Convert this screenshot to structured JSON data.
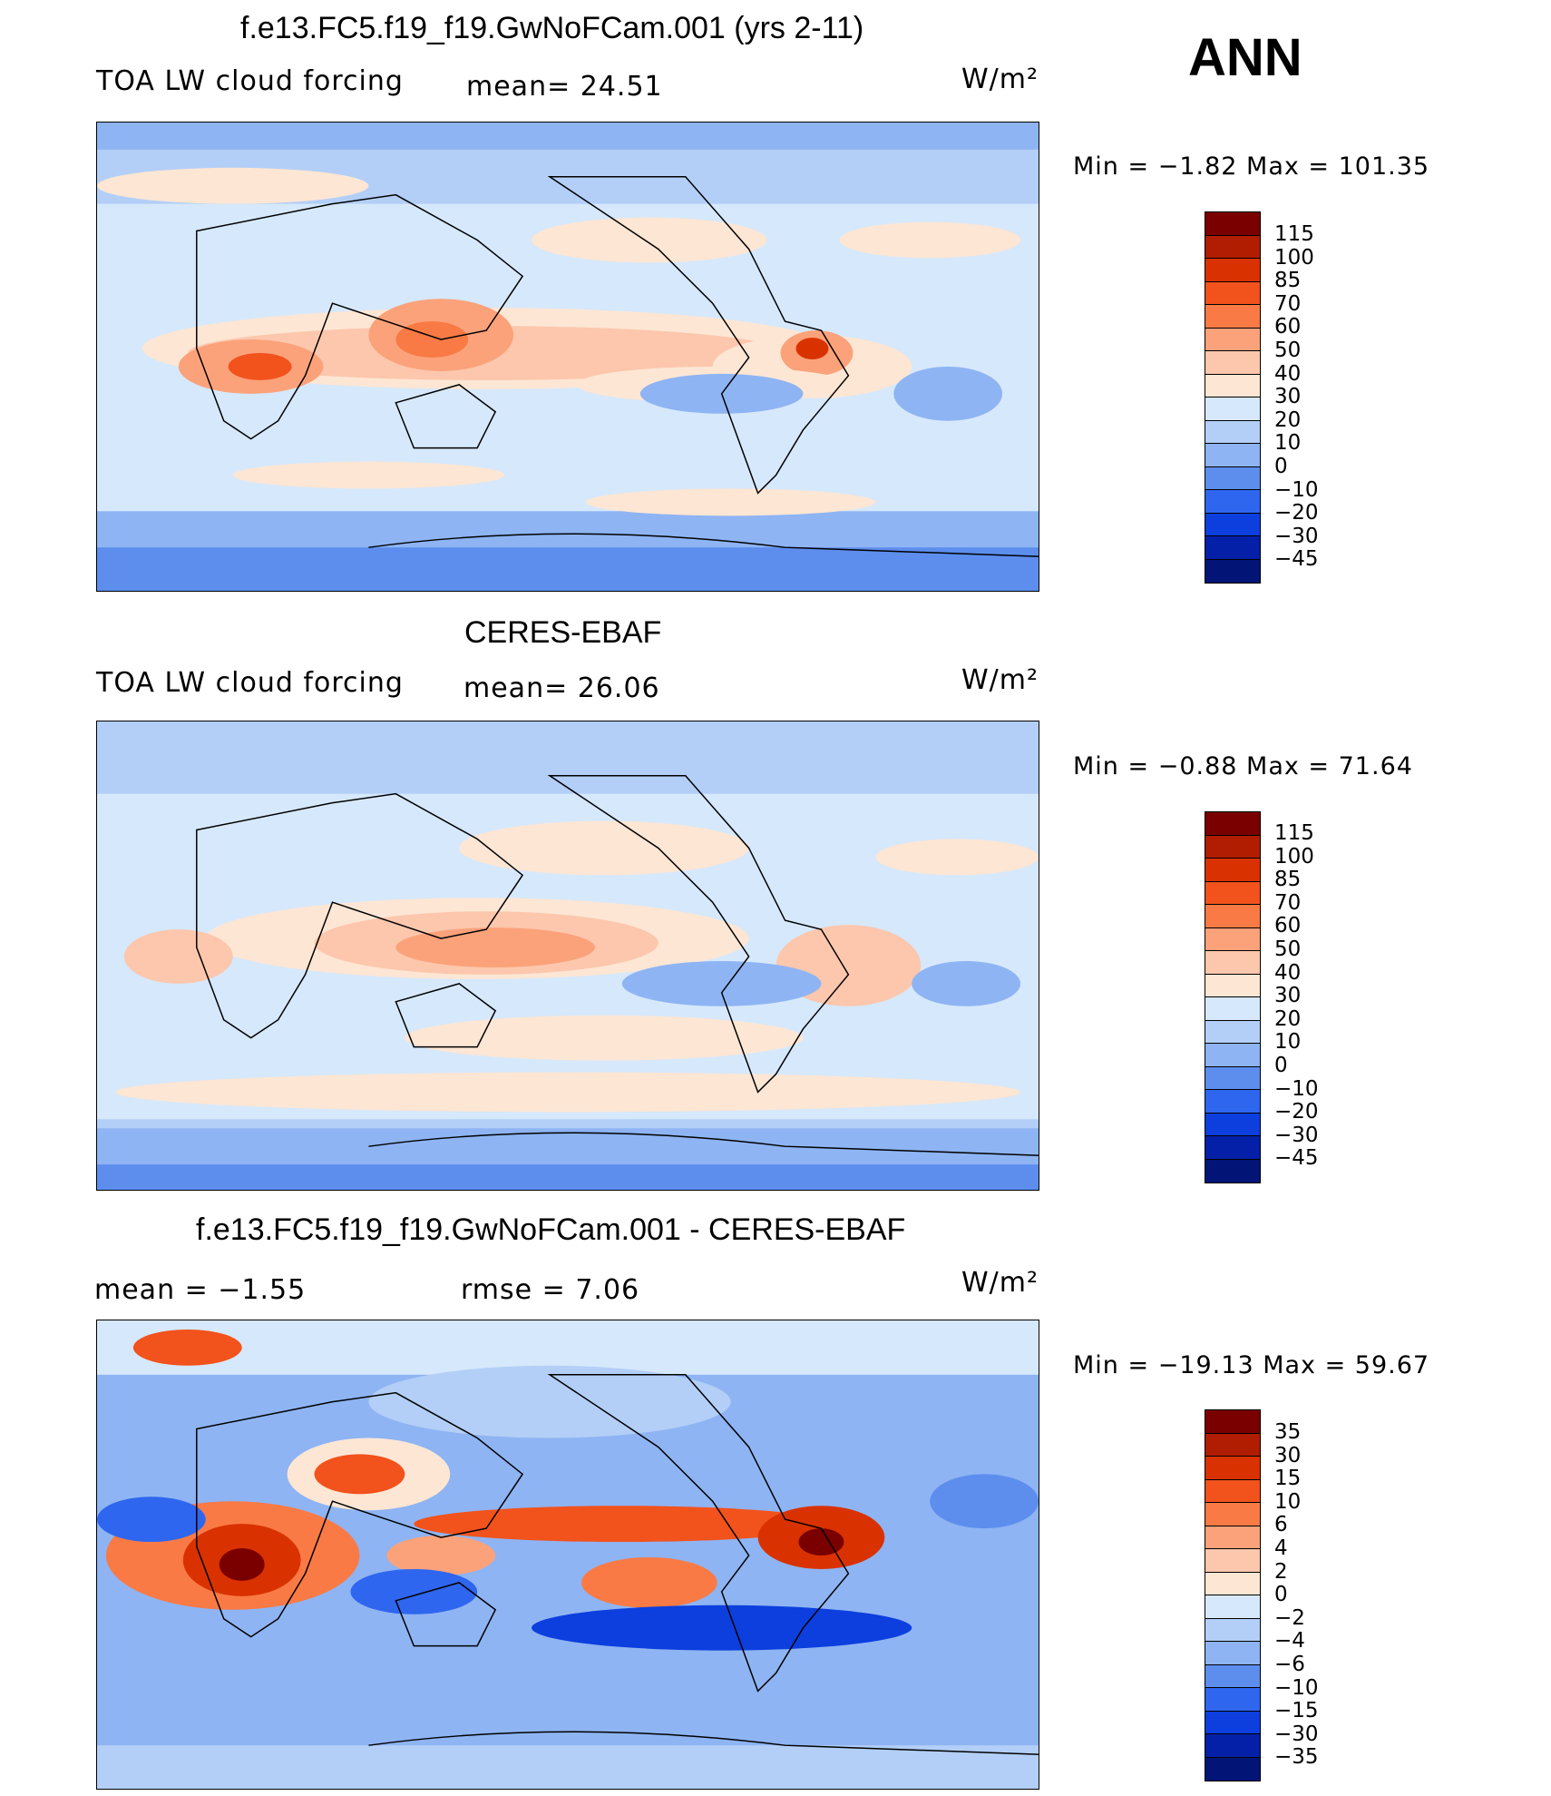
{
  "season": "ANN",
  "units": "W/m²",
  "panels": [
    {
      "title": "f.e13.FC5.f19_f19.GwNoFCam.001 (yrs 2-11)",
      "variable": "TOA LW cloud forcing",
      "stat1": "mean=   24.51",
      "stat2": "",
      "minmax": "Min =   −1.82  Max  =  101.35",
      "levels": [
        "115",
        "100",
        "85",
        "70",
        "60",
        "50",
        "40",
        "30",
        "20",
        "10",
        "0",
        "−10",
        "−20",
        "−30",
        "−45"
      ],
      "colors": [
        "#7a0000",
        "#b01d00",
        "#d93200",
        "#f2521c",
        "#f97a45",
        "#fba27a",
        "#fcc7ad",
        "#fde6d4",
        "#d6e8fb",
        "#b3cff7",
        "#8eb4f3",
        "#5d8eee",
        "#2f66ef",
        "#0c3fde",
        "#0420a8",
        "#021476"
      ]
    },
    {
      "title": "CERES-EBAF",
      "variable": "TOA LW cloud forcing",
      "stat1": "mean=   26.06",
      "stat2": "",
      "minmax": "Min =   −0.88  Max  =   71.64",
      "levels": [
        "115",
        "100",
        "85",
        "70",
        "60",
        "50",
        "40",
        "30",
        "20",
        "10",
        "0",
        "−10",
        "−20",
        "−30",
        "−45"
      ],
      "colors": [
        "#7a0000",
        "#b01d00",
        "#d93200",
        "#f2521c",
        "#f97a45",
        "#fba27a",
        "#fcc7ad",
        "#fde6d4",
        "#d6e8fb",
        "#b3cff7",
        "#8eb4f3",
        "#5d8eee",
        "#2f66ef",
        "#0c3fde",
        "#0420a8",
        "#021476"
      ]
    },
    {
      "title": "f.e13.FC5.f19_f19.GwNoFCam.001 - CERES-EBAF",
      "variable": "",
      "stat1": "mean  =    −1.55",
      "stat2": "rmse  =     7.06",
      "minmax": "Min  = −19.13  Max  =    59.67",
      "levels": [
        "35",
        "30",
        "15",
        "10",
        "6",
        "4",
        "2",
        "0",
        "−2",
        "−4",
        "−6",
        "−10",
        "−15",
        "−30",
        "−35"
      ],
      "colors": [
        "#7a0000",
        "#b01d00",
        "#d93200",
        "#f2521c",
        "#f97a45",
        "#fba27a",
        "#fcc7ad",
        "#fde6d4",
        "#d6e8fb",
        "#b3cff7",
        "#8eb4f3",
        "#5d8eee",
        "#2f66ef",
        "#0c3fde",
        "#0420a8",
        "#021476"
      ]
    }
  ]
}
